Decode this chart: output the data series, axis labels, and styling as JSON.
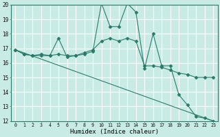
{
  "xlabel": "Humidex (Indice chaleur)",
  "xlim": [
    -0.5,
    23.5
  ],
  "ylim": [
    12,
    20
  ],
  "yticks": [
    12,
    13,
    14,
    15,
    16,
    17,
    18,
    19,
    20
  ],
  "xticks": [
    0,
    1,
    2,
    3,
    4,
    5,
    6,
    7,
    8,
    9,
    10,
    11,
    12,
    13,
    14,
    15,
    16,
    17,
    18,
    19,
    20,
    21,
    22,
    23
  ],
  "background_color": "#c8ebe6",
  "grid_color": "#ffffff",
  "line_color": "#2a7a6a",
  "series": [
    {
      "x": [
        0,
        1,
        2,
        3,
        4,
        5,
        6,
        7,
        8,
        9,
        10,
        11,
        12,
        13,
        14,
        15,
        16,
        17,
        18,
        19,
        20,
        21,
        22,
        23
      ],
      "y": [
        16.9,
        16.6,
        16.5,
        16.6,
        16.5,
        17.7,
        16.4,
        16.5,
        16.6,
        16.8,
        20.1,
        18.5,
        18.5,
        20.1,
        19.5,
        15.6,
        18.0,
        15.8,
        15.8,
        13.8,
        13.1,
        12.3,
        12.2,
        12.0
      ],
      "marker": true
    },
    {
      "x": [
        0,
        1,
        2,
        3,
        4,
        5,
        6,
        7,
        8,
        9,
        10,
        11,
        12,
        13,
        14,
        15,
        16,
        17,
        18,
        19,
        20,
        21,
        22,
        23
      ],
      "y": [
        16.9,
        16.6,
        16.5,
        16.5,
        16.5,
        16.6,
        16.5,
        16.5,
        16.7,
        16.9,
        17.5,
        17.7,
        17.5,
        17.7,
        17.5,
        15.8,
        15.8,
        15.7,
        15.5,
        15.3,
        15.2,
        15.0,
        15.0,
        15.0
      ],
      "marker": true
    },
    {
      "x": [
        0,
        23
      ],
      "y": [
        16.9,
        12.0
      ],
      "marker": false
    }
  ]
}
